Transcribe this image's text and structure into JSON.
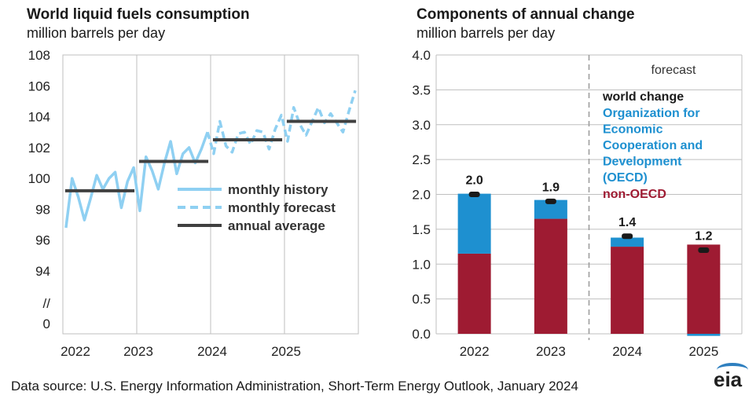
{
  "left_chart": {
    "title": "World liquid fuels consumption",
    "subtitle": "million barrels per day",
    "legend": [
      "monthly history",
      "monthly forecast",
      "annual average"
    ],
    "axis_break": "//"
  },
  "right_chart": {
    "title": "Components of annual change",
    "subtitle": "million barrels per day",
    "forecast_label": "forecast",
    "legend": {
      "world": "world change",
      "oecd": "Organization for Economic Cooperation and Development (OECD)",
      "oecd_lines": [
        "Organization for",
        "Economic",
        "Cooperation and",
        "Development",
        "(OECD)"
      ],
      "non_oecd": "non-OECD"
    }
  },
  "footer": {
    "source": "Data source: U.S. Energy Information Administration, Short-Term Energy Outlook, January 2024",
    "logo": "eia"
  },
  "colors": {
    "history": "#8fd0f2",
    "forecast": "#8fd0f2",
    "annual": "#404040",
    "oecd": "#1e90d0",
    "non_oecd": "#9e1b32",
    "world_marker": "#1a1a1a",
    "grid": "#bfbfbf"
  },
  "chart_data": [
    {
      "type": "line",
      "title": "World liquid fuels consumption",
      "ylabel": "million barrels per day",
      "ylim": [
        0,
        108
      ],
      "yticks": [
        "108",
        "106",
        "104",
        "102",
        "100",
        "98",
        "96",
        "94",
        "//",
        "0"
      ],
      "xticks": [
        "2022",
        "2023",
        "2024",
        "2025"
      ],
      "series": [
        {
          "name": "monthly history",
          "x": [
            "2022-01",
            "2022-02",
            "2022-03",
            "2022-04",
            "2022-05",
            "2022-06",
            "2022-07",
            "2022-08",
            "2022-09",
            "2022-10",
            "2022-11",
            "2022-12",
            "2023-01",
            "2023-02",
            "2023-03",
            "2023-04",
            "2023-05",
            "2023-06",
            "2023-07",
            "2023-08",
            "2023-09",
            "2023-10",
            "2023-11",
            "2023-12"
          ],
          "values": [
            96.8,
            100.0,
            98.8,
            97.3,
            98.7,
            100.2,
            99.3,
            100.0,
            100.4,
            98.1,
            99.8,
            100.7,
            97.9,
            101.4,
            100.5,
            99.3,
            101.0,
            102.4,
            100.3,
            101.6,
            102.0,
            101.0,
            101.9,
            103.0
          ]
        },
        {
          "name": "monthly forecast",
          "x": [
            "2024-01",
            "2024-02",
            "2024-03",
            "2024-04",
            "2024-05",
            "2024-06",
            "2024-07",
            "2024-08",
            "2024-09",
            "2024-10",
            "2024-11",
            "2024-12",
            "2025-01",
            "2025-02",
            "2025-03",
            "2025-04",
            "2025-05",
            "2025-06",
            "2025-07",
            "2025-08",
            "2025-09",
            "2025-10",
            "2025-11",
            "2025-12"
          ],
          "values": [
            101.6,
            103.7,
            102.1,
            101.7,
            102.9,
            103.0,
            102.2,
            103.1,
            103.0,
            101.9,
            103.2,
            104.1,
            102.4,
            104.6,
            103.5,
            102.8,
            103.7,
            104.6,
            103.6,
            104.2,
            103.6,
            103.0,
            104.4,
            105.7
          ]
        },
        {
          "name": "annual average",
          "x": [
            "2022",
            "2023",
            "2024",
            "2025"
          ],
          "values": [
            99.2,
            101.1,
            102.5,
            103.7
          ]
        }
      ]
    },
    {
      "type": "bar",
      "title": "Components of annual change",
      "ylabel": "million barrels per day",
      "ylim": [
        0,
        4.0
      ],
      "yticks": [
        "0.0",
        "0.5",
        "1.0",
        "1.5",
        "2.0",
        "2.5",
        "3.0",
        "3.5",
        "4.0"
      ],
      "categories": [
        "2022",
        "2023",
        "2024",
        "2025"
      ],
      "series": [
        {
          "name": "non-OECD",
          "values": [
            1.15,
            1.65,
            1.25,
            1.28
          ]
        },
        {
          "name": "OECD",
          "values": [
            0.86,
            0.27,
            0.13,
            -0.03
          ]
        },
        {
          "name": "world change",
          "values": [
            2.0,
            1.9,
            1.4,
            1.2
          ]
        }
      ],
      "data_labels": [
        "2.0",
        "1.9",
        "1.4",
        "1.2"
      ],
      "forecast_start": "2024"
    }
  ]
}
